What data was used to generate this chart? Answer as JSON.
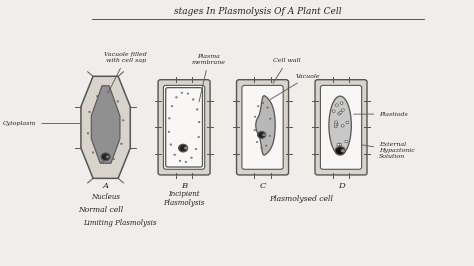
{
  "title": "stages In Plasmolysis Of A Plant Cell",
  "bg_color": "#f0eeea",
  "panel_bg": "#f5f4f0",
  "text_color": "#222222",
  "line_color": "#555555",
  "cell_wall_fill": "#d8d4cc",
  "inner_fill": "#eeecea",
  "vacuole_gray": "#aaaaaa",
  "proto_gray": "#c0bfbc",
  "white_space": "#f8f7f5",
  "labels": {
    "title": "stages In Plasmolysis Of A Plant Cell",
    "vacuole_filled": "Vacuole filled\nwith cell sap",
    "plasma_membrane": "Plasma\nmembrane",
    "cell_wall": "Cell wall",
    "vacuole": "Vacuole",
    "cytoplasm": "Cytoplasm",
    "nucleus": "Nucleus",
    "plastiods": "Plastiods",
    "external": "External\nHypaztonic\nSolution",
    "normal_cell": "Normal cell",
    "limiting": "Limiting Plasmolysis",
    "incipient": "Incipient\nPlasmolysis",
    "plasmolysed": "Plasmolysed cell"
  }
}
